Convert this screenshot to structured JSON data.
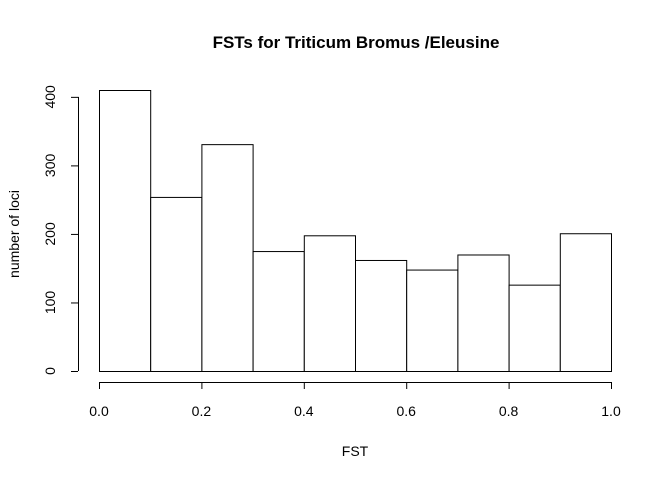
{
  "chart_data": {
    "type": "bar",
    "title": "FSTs for Triticum Bromus /Eleusine",
    "xlabel": "FST",
    "ylabel": "number of loci",
    "bins": [
      {
        "x0": 0.0,
        "x1": 0.1,
        "count": 410
      },
      {
        "x0": 0.1,
        "x1": 0.2,
        "count": 254
      },
      {
        "x0": 0.2,
        "x1": 0.3,
        "count": 331
      },
      {
        "x0": 0.3,
        "x1": 0.4,
        "count": 175
      },
      {
        "x0": 0.4,
        "x1": 0.5,
        "count": 198
      },
      {
        "x0": 0.5,
        "x1": 0.6,
        "count": 162
      },
      {
        "x0": 0.6,
        "x1": 0.7,
        "count": 148
      },
      {
        "x0": 0.7,
        "x1": 0.8,
        "count": 170
      },
      {
        "x0": 0.8,
        "x1": 0.9,
        "count": 126
      },
      {
        "x0": 0.9,
        "x1": 1.0,
        "count": 201
      }
    ],
    "xlim": [
      0.0,
      1.0
    ],
    "ylim": [
      0,
      410
    ],
    "xticks": [
      "0.0",
      "0.2",
      "0.4",
      "0.6",
      "0.8",
      "1.0"
    ],
    "yticks": [
      "0",
      "100",
      "200",
      "300",
      "400"
    ],
    "grid": false,
    "bar_fill": "#ffffff",
    "bar_stroke": "#000000"
  }
}
